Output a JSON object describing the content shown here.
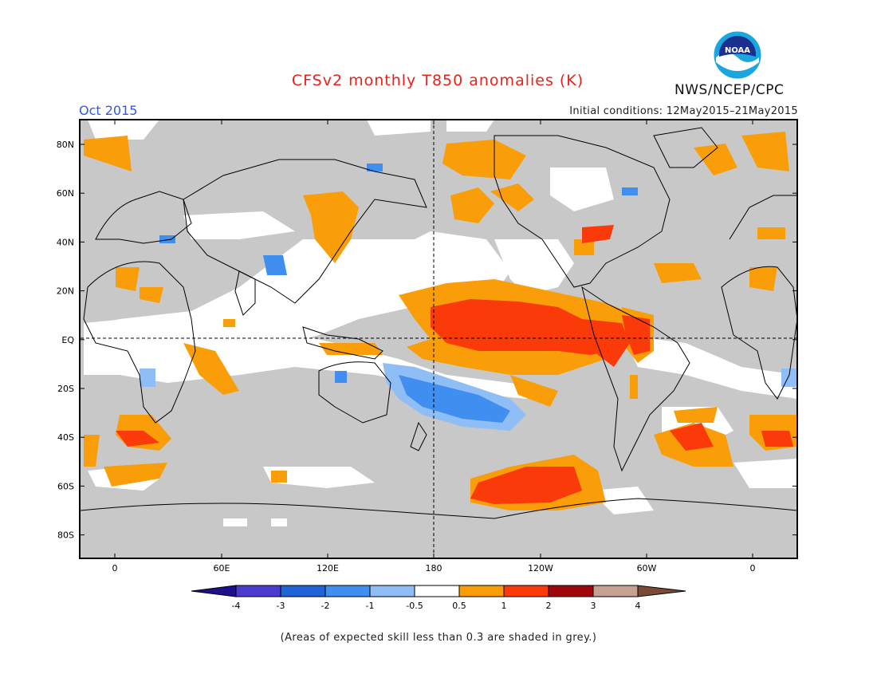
{
  "title": "CFSv2 monthly T850 anomalies (K)",
  "forecast_month": "Oct 2015",
  "initial_conditions": "Initial conditions: 12May2015–21May2015",
  "agency": "NWS/NCEP/CPC",
  "logo_text": "NOAA",
  "footnote": "(Areas of expected skill less than 0.3 are shaded in grey.)",
  "lat_labels": [
    "80N",
    "60N",
    "40N",
    "20N",
    "EQ",
    "20S",
    "40S",
    "60S",
    "80S"
  ],
  "lon_labels": [
    "0",
    "60E",
    "120E",
    "180",
    "120W",
    "60W",
    "0"
  ],
  "colorbar": {
    "ticks": [
      "-4",
      "-3",
      "-2",
      "-1",
      "-0.5",
      "0.5",
      "1",
      "2",
      "3",
      "4"
    ],
    "colors": [
      "#1e0f8c",
      "#4b3ccf",
      "#1f63d6",
      "#3f8ef0",
      "#8fbdf5",
      "#ffffff",
      "#f99d09",
      "#fb3a0a",
      "#a0060c",
      "#c7a094",
      "#7a4a35"
    ]
  },
  "map_colors": {
    "grey": "#c8c8c8",
    "white": "#ffffff",
    "orange": "#f99d09",
    "red": "#fb3a0a",
    "light_blue": "#8fbdf5",
    "mid_blue": "#3f8ef0"
  }
}
